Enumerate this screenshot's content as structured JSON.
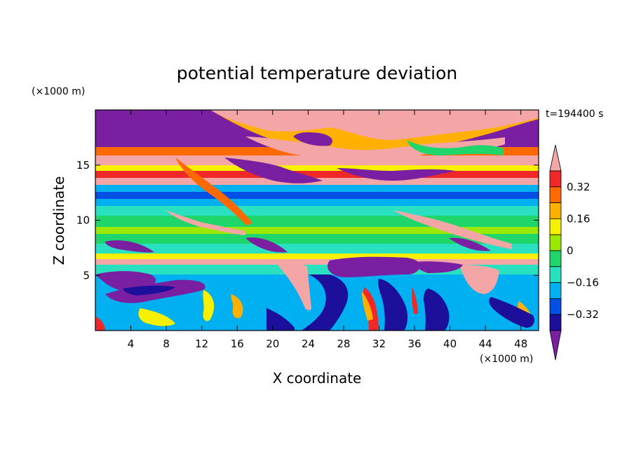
{
  "chart_data": {
    "type": "heatmap",
    "title": "potential temperature deviation",
    "time_label": "t=194400 s",
    "xlabel": "X coordinate",
    "ylabel": "Z coordinate",
    "x_unit": "(×1000 m)",
    "y_unit": "(×1000 m)",
    "xlim": [
      0,
      50
    ],
    "ylim": [
      0,
      20
    ],
    "x_ticks": [
      "4",
      "8",
      "12",
      "16",
      "20",
      "24",
      "28",
      "32",
      "36",
      "40",
      "44",
      "48"
    ],
    "y_ticks": [
      "5",
      "10",
      "15"
    ],
    "colorbar": {
      "levels": [
        -0.4,
        -0.32,
        -0.24,
        -0.16,
        -0.08,
        0,
        0.08,
        0.16,
        0.24,
        0.32,
        0.4
      ],
      "tick_labels": [
        "0.32",
        "0.16",
        "0",
        "−0.16",
        "−0.32"
      ],
      "colors": [
        "#7a1fa2",
        "#1c0f9c",
        "#0050e6",
        "#00b0f0",
        "#29e0c0",
        "#1fd66a",
        "#9be800",
        "#f7f000",
        "#ffb000",
        "#ff6a00",
        "#f02828",
        "#f4a6a6"
      ]
    },
    "grid": false
  }
}
